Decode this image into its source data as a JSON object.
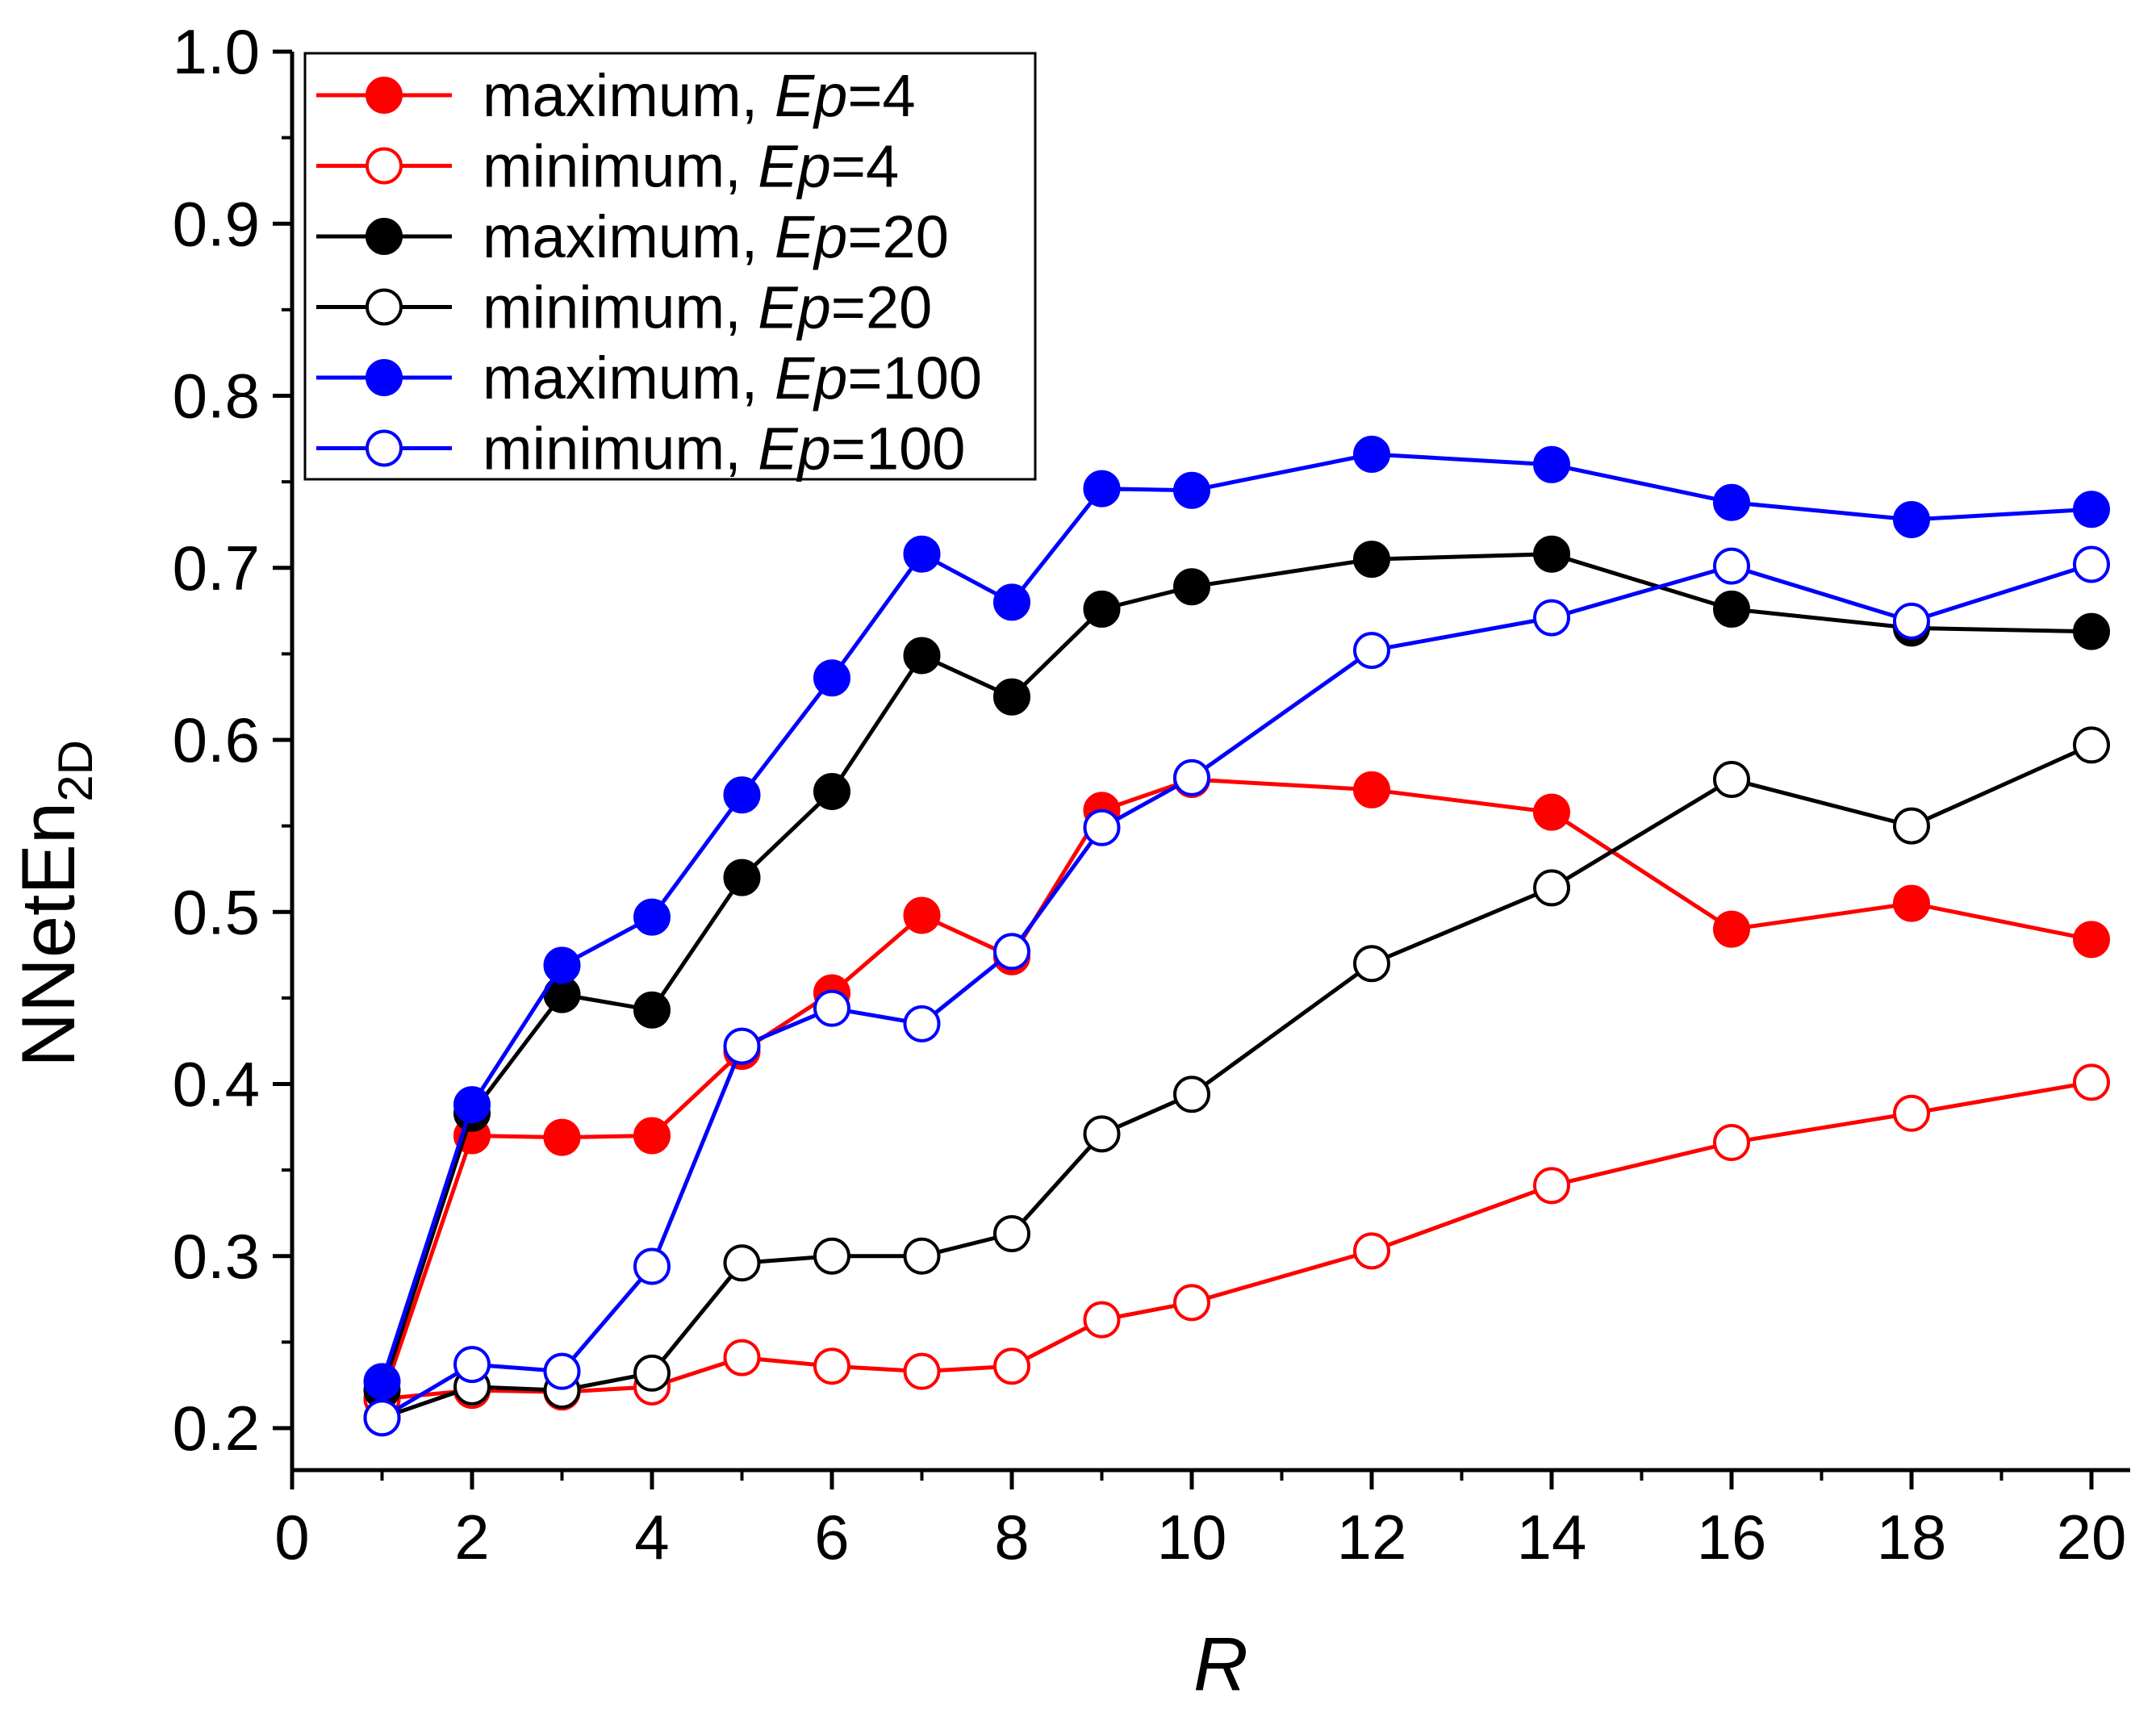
{
  "chart_data": {
    "type": "line",
    "title": "",
    "xlabel": "R",
    "ylabel": {
      "main": "NNetEn",
      "sub": "2D"
    },
    "xlim": [
      0,
      20.5
    ],
    "ylim": [
      0.2,
      1.0
    ],
    "xticks": [
      0,
      2,
      4,
      6,
      8,
      10,
      12,
      14,
      16,
      18,
      20
    ],
    "xtick_labels": [
      "0",
      "2",
      "4",
      "6",
      "8",
      "10",
      "12",
      "14",
      "16",
      "18",
      "20"
    ],
    "yticks": [
      0.2,
      0.3,
      0.4,
      0.5,
      0.6,
      0.7,
      0.8,
      0.9,
      1.0
    ],
    "ytick_labels": [
      "0.2",
      "0.3",
      "0.4",
      "0.5",
      "0.6",
      "0.7",
      "0.8",
      "0.9",
      "1.0"
    ],
    "x": [
      1,
      2,
      3,
      4,
      5,
      6,
      7,
      8,
      9,
      10,
      12,
      14,
      16,
      18,
      20
    ],
    "legend_position": "top-left",
    "series": [
      {
        "name": "maximum, Ep=4",
        "label_prefix": "maximum, ",
        "label_italic": "Ep",
        "label_suffix": "=4",
        "color": "#ff0000",
        "filled": true,
        "values": [
          0.217,
          0.37,
          0.369,
          0.37,
          0.419,
          0.453,
          0.498,
          0.474,
          0.559,
          0.577,
          0.571,
          0.558,
          0.49,
          0.505,
          0.484
        ]
      },
      {
        "name": "minimum,  Ep=4",
        "label_prefix": "minimum,  ",
        "label_italic": "Ep",
        "label_suffix": "=4",
        "color": "#ff0000",
        "filled": false,
        "values": [
          0.217,
          0.222,
          0.221,
          0.224,
          0.241,
          0.236,
          0.233,
          0.236,
          0.263,
          0.273,
          0.303,
          0.341,
          0.366,
          0.383,
          0.401
        ]
      },
      {
        "name": "maximum, Ep=20",
        "label_prefix": "maximum, ",
        "label_italic": "Ep",
        "label_suffix": "=20",
        "color": "#000000",
        "filled": true,
        "values": [
          0.222,
          0.383,
          0.452,
          0.443,
          0.52,
          0.57,
          0.649,
          0.625,
          0.676,
          0.689,
          0.705,
          0.708,
          0.676,
          0.665,
          0.663
        ]
      },
      {
        "name": "minimum,  Ep=20",
        "label_prefix": "minimum,  ",
        "label_italic": "Ep",
        "label_suffix": "=20",
        "color": "#000000",
        "filled": false,
        "values": [
          0.206,
          0.224,
          0.222,
          0.232,
          0.296,
          0.3,
          0.3,
          0.313,
          0.371,
          0.394,
          0.47,
          0.514,
          0.577,
          0.55,
          0.597
        ]
      },
      {
        "name": "maximum, Ep=100",
        "label_prefix": "maximum, ",
        "label_italic": "Ep",
        "label_suffix": "=100",
        "color": "#0000ff",
        "filled": true,
        "values": [
          0.227,
          0.388,
          0.469,
          0.497,
          0.568,
          0.636,
          0.708,
          0.68,
          0.746,
          0.745,
          0.766,
          0.76,
          0.738,
          0.728,
          0.734
        ]
      },
      {
        "name": "minimum,  Ep=100",
        "label_prefix": "minimum,  ",
        "label_italic": "Ep",
        "label_suffix": "=100",
        "color": "#0000ff",
        "filled": false,
        "values": [
          0.206,
          0.237,
          0.233,
          0.294,
          0.422,
          0.444,
          0.435,
          0.477,
          0.549,
          0.578,
          0.652,
          0.671,
          0.701,
          0.669,
          0.702
        ]
      }
    ]
  }
}
